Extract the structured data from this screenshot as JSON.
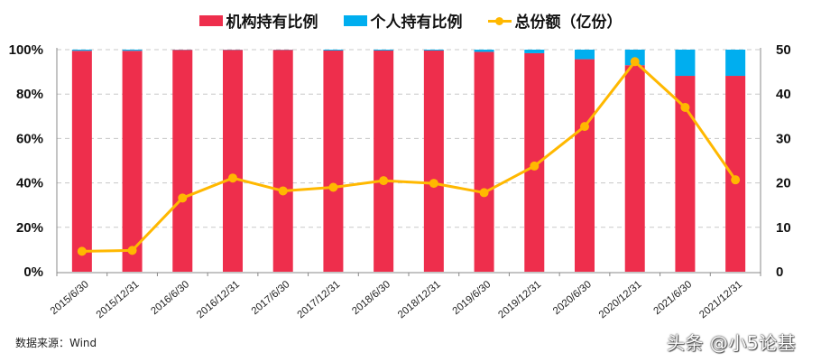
{
  "legend": {
    "items": [
      {
        "label": "机构持有比例",
        "type": "bar",
        "color": "#EE2E4C"
      },
      {
        "label": "个人持有比例",
        "type": "bar",
        "color": "#00AEEF"
      },
      {
        "label": "总份额（亿份）",
        "type": "line",
        "color": "#FFB800"
      }
    ]
  },
  "source_note": "数据来源：Wind",
  "watermark": "头条 @小5论基",
  "chart_data": {
    "type": "bar",
    "subtype": "stacked-percent-bar-with-line-secondary-axis",
    "title": "",
    "categories": [
      "2015/6/30",
      "2015/12/31",
      "2016/6/30",
      "2016/12/31",
      "2017/6/30",
      "2017/12/31",
      "2018/6/30",
      "2018/12/31",
      "2019/6/30",
      "2019/12/31",
      "2020/6/30",
      "2020/12/31",
      "2021/6/30",
      "2021/12/31"
    ],
    "series": [
      {
        "name": "机构持有比例",
        "axis": "left",
        "type": "bar",
        "color": "#EE2E4C",
        "values": [
          99.5,
          99.5,
          99.9,
          99.9,
          99.9,
          99.6,
          99.6,
          99.6,
          99.0,
          98.4,
          95.7,
          93.0,
          88.2,
          88.2
        ]
      },
      {
        "name": "个人持有比例",
        "axis": "left",
        "type": "bar",
        "color": "#00AEEF",
        "values": [
          0.5,
          0.5,
          0.1,
          0.1,
          0.1,
          0.4,
          0.4,
          0.4,
          1.0,
          1.6,
          4.3,
          7.0,
          11.8,
          11.8
        ]
      },
      {
        "name": "总份额（亿份）",
        "axis": "right",
        "type": "line",
        "color": "#FFB800",
        "values": [
          4.6,
          4.8,
          16.6,
          21.1,
          18.2,
          19.0,
          20.5,
          19.9,
          17.8,
          23.8,
          32.7,
          47.3,
          37.0,
          20.7
        ]
      }
    ],
    "left_axis": {
      "ticks": [
        "0%",
        "20%",
        "40%",
        "60%",
        "80%",
        "100%"
      ],
      "ylim": [
        0,
        100
      ]
    },
    "right_axis": {
      "ticks": [
        "0",
        "10",
        "20",
        "30",
        "40",
        "50"
      ],
      "ylim": [
        0,
        50
      ]
    },
    "xlabel": "",
    "ylabel": "",
    "grid": "horizontal dashed",
    "legend_position": "top"
  }
}
